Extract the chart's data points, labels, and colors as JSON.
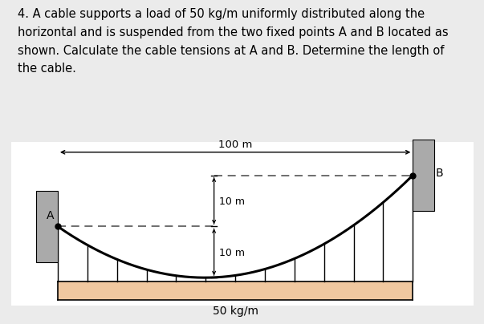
{
  "bg_color": "#ebebeb",
  "diagram_bg": "#ffffff",
  "text_color": "#000000",
  "title_text": "4. A cable supports a load of 50 kg/m uniformly distributed along the\nhorizontal and is suspended from the two fixed points A and B located as\nshown. Calculate the cable tensions at A and B. Determine the length of\nthe cable.",
  "title_fontsize": 10.5,
  "load_label": "50 kg/m",
  "dim_label_100": "100 m",
  "dim_label_10a": "10 m",
  "dim_label_10b": "10 m",
  "ground_color": "#f0c8a0",
  "cable_color": "#000000",
  "dashed_color": "#555555",
  "wall_color": "#aaaaaa",
  "n_load_lines": 13,
  "xA": 0,
  "yA": 0,
  "xB": 100,
  "yB": 10
}
